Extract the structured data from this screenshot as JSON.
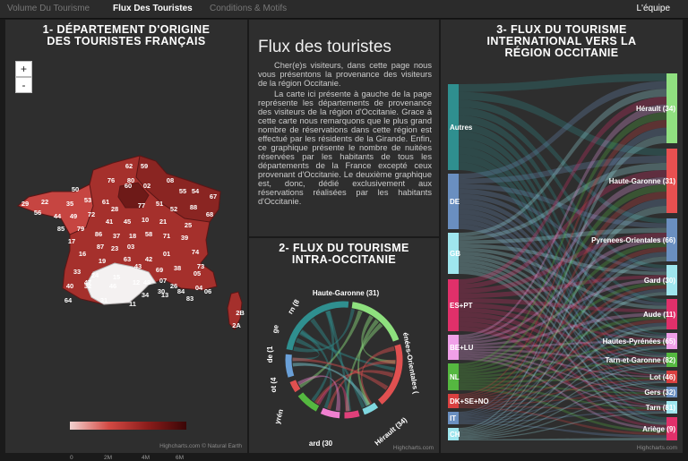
{
  "nav": {
    "tabs": [
      {
        "label": "Volume Du Tourisme"
      },
      {
        "label": "Flux Des Touristes"
      },
      {
        "label": "Conditions & Motifs"
      }
    ],
    "team": "L'équipe"
  },
  "map_panel": {
    "title_line1": "1- DÉPARTEMENT D'ORIGINE",
    "title_line2": "DES TOURISTES FRANÇAIS",
    "zoom_in": "+",
    "zoom_out": "-",
    "legend_ticks": [
      "0",
      "2M",
      "4M",
      "6M"
    ],
    "credit": "Highcharts.com © Natural Earth",
    "departments": [
      "62",
      "59",
      "76",
      "80",
      "08",
      "50",
      "60",
      "02",
      "55",
      "54",
      "67",
      "29",
      "22",
      "35",
      "53",
      "61",
      "28",
      "77",
      "51",
      "52",
      "88",
      "68",
      "56",
      "44",
      "49",
      "72",
      "41",
      "45",
      "10",
      "21",
      "25",
      "85",
      "79",
      "86",
      "37",
      "18",
      "58",
      "71",
      "39",
      "17",
      "87",
      "23",
      "03",
      "63",
      "42",
      "01",
      "74",
      "16",
      "19",
      "43",
      "69",
      "38",
      "73",
      "33",
      "24",
      "15",
      "07",
      "26",
      "05",
      "40",
      "47",
      "46",
      "12",
      "48",
      "30",
      "84",
      "04",
      "06",
      "64",
      "32",
      "31",
      "11",
      "34",
      "13",
      "83",
      "2B",
      "2A"
    ]
  },
  "text_panel": {
    "heading": "Flux des touristes",
    "paragraph1": "Cher(e)s visiteurs, dans cette page nous vous présentons la provenance des visiteurs de la région Occitanie.",
    "paragraph2": "La carte ici présente à gauche de la page représente les départements de provenance des visiteurs de la région d'Occitanie. Grace à cette carte nous remarquons que le plus grand nombre de réservations dans cette région est effectué par les résidents de la Girande. Enfin, ce graphique présente le nombre de nuitées réservées par les habitants de tous les départements de la France excepté ceux provenant d'Occitanie. Le deuxième graphique est, donc, dédié exclusivement aux réservations réalisées par les habitants d'Occitanie."
  },
  "chord_panel": {
    "title_line1": "2- FLUX DU TOURISME",
    "title_line2": "INTRA-OCCITANIE",
    "credit": "Highcharts.com",
    "nodes": [
      {
        "label": "Haute-Garonne (31)",
        "color": "#2f8f8f"
      },
      {
        "label": "énées-Orientales (",
        "color": "#8ee07e"
      },
      {
        "label": "Hérault (34)",
        "color": "#e05050"
      },
      {
        "label": "ard (30",
        "color": "#7fd8e0"
      },
      {
        "label": "yrén",
        "color": "#e0407a"
      },
      {
        "label": "ot (4",
        "color": "#f080d0"
      },
      {
        "label": "de (1",
        "color": "#55b840"
      },
      {
        "label": "ge",
        "color": "#e05050"
      },
      {
        "label": "rn (8",
        "color": "#6aa0d8"
      }
    ]
  },
  "sankey_panel": {
    "title_line1": "3- FLUX DU TOURISME",
    "title_line2": "INTERNATIONAL VERS LA",
    "title_line3": "RÉGION OCCITANIE",
    "credit": "Highcharts.com",
    "sources": [
      {
        "label": "Autres",
        "color": "#2f8f8f"
      },
      {
        "label": "DE",
        "color": "#6a8fc0"
      },
      {
        "label": "GB",
        "color": "#9fe6ee"
      },
      {
        "label": "ES+PT",
        "color": "#e0306a"
      },
      {
        "label": "BE+LU",
        "color": "#f0a0e8"
      },
      {
        "label": "NL",
        "color": "#55b840"
      },
      {
        "label": "DK+SE+NO",
        "color": "#d94040"
      },
      {
        "label": "IT",
        "color": "#6a8fc0"
      },
      {
        "label": "CH",
        "color": "#9fe6ee"
      }
    ],
    "destinations": [
      {
        "label": "Hérault (34)",
        "color": "#90e080"
      },
      {
        "label": "Haute-Garonne (31)",
        "color": "#e85050"
      },
      {
        "label": "Pyrenees-Orientales (66)",
        "color": "#6a8fc0"
      },
      {
        "label": "Gard (30)",
        "color": "#9fe6ee"
      },
      {
        "label": "Aude (11)",
        "color": "#e0306a"
      },
      {
        "label": "Hautes-Pyrénées (65)",
        "color": "#f0a0e8"
      },
      {
        "label": "Tarn-et-Garonne (82)",
        "color": "#55b840"
      },
      {
        "label": "Lot (46)",
        "color": "#d94040"
      },
      {
        "label": "Gers (32)",
        "color": "#6a8fc0"
      },
      {
        "label": "Tarn (81)",
        "color": "#9fe6ee"
      },
      {
        "label": "Ariège (9)",
        "color": "#e0306a"
      }
    ]
  }
}
